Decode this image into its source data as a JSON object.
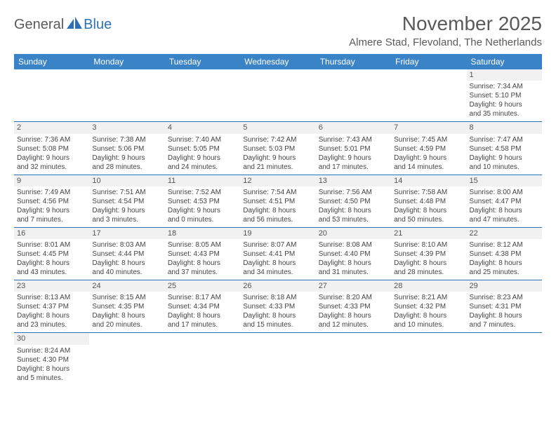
{
  "logo": {
    "part1": "General",
    "part2": "Blue"
  },
  "title": "November 2025",
  "location": "Almere Stad, Flevoland, The Netherlands",
  "colors": {
    "header_bg": "#3b83c7",
    "header_text": "#ffffff",
    "border": "#2d6fb8",
    "daynum_bg": "#f1f1f1",
    "text": "#444444",
    "title_text": "#5a5a5a"
  },
  "typography": {
    "title_fontsize": 28,
    "location_fontsize": 15,
    "header_fontsize": 12,
    "cell_fontsize": 10
  },
  "dayHeaders": [
    "Sunday",
    "Monday",
    "Tuesday",
    "Wednesday",
    "Thursday",
    "Friday",
    "Saturday"
  ],
  "weeks": [
    [
      {
        "n": "",
        "sr": "",
        "ss": "",
        "d1": "",
        "d2": ""
      },
      {
        "n": "",
        "sr": "",
        "ss": "",
        "d1": "",
        "d2": ""
      },
      {
        "n": "",
        "sr": "",
        "ss": "",
        "d1": "",
        "d2": ""
      },
      {
        "n": "",
        "sr": "",
        "ss": "",
        "d1": "",
        "d2": ""
      },
      {
        "n": "",
        "sr": "",
        "ss": "",
        "d1": "",
        "d2": ""
      },
      {
        "n": "",
        "sr": "",
        "ss": "",
        "d1": "",
        "d2": ""
      },
      {
        "n": "1",
        "sr": "Sunrise: 7:34 AM",
        "ss": "Sunset: 5:10 PM",
        "d1": "Daylight: 9 hours",
        "d2": "and 35 minutes."
      }
    ],
    [
      {
        "n": "2",
        "sr": "Sunrise: 7:36 AM",
        "ss": "Sunset: 5:08 PM",
        "d1": "Daylight: 9 hours",
        "d2": "and 32 minutes."
      },
      {
        "n": "3",
        "sr": "Sunrise: 7:38 AM",
        "ss": "Sunset: 5:06 PM",
        "d1": "Daylight: 9 hours",
        "d2": "and 28 minutes."
      },
      {
        "n": "4",
        "sr": "Sunrise: 7:40 AM",
        "ss": "Sunset: 5:05 PM",
        "d1": "Daylight: 9 hours",
        "d2": "and 24 minutes."
      },
      {
        "n": "5",
        "sr": "Sunrise: 7:42 AM",
        "ss": "Sunset: 5:03 PM",
        "d1": "Daylight: 9 hours",
        "d2": "and 21 minutes."
      },
      {
        "n": "6",
        "sr": "Sunrise: 7:43 AM",
        "ss": "Sunset: 5:01 PM",
        "d1": "Daylight: 9 hours",
        "d2": "and 17 minutes."
      },
      {
        "n": "7",
        "sr": "Sunrise: 7:45 AM",
        "ss": "Sunset: 4:59 PM",
        "d1": "Daylight: 9 hours",
        "d2": "and 14 minutes."
      },
      {
        "n": "8",
        "sr": "Sunrise: 7:47 AM",
        "ss": "Sunset: 4:58 PM",
        "d1": "Daylight: 9 hours",
        "d2": "and 10 minutes."
      }
    ],
    [
      {
        "n": "9",
        "sr": "Sunrise: 7:49 AM",
        "ss": "Sunset: 4:56 PM",
        "d1": "Daylight: 9 hours",
        "d2": "and 7 minutes."
      },
      {
        "n": "10",
        "sr": "Sunrise: 7:51 AM",
        "ss": "Sunset: 4:54 PM",
        "d1": "Daylight: 9 hours",
        "d2": "and 3 minutes."
      },
      {
        "n": "11",
        "sr": "Sunrise: 7:52 AM",
        "ss": "Sunset: 4:53 PM",
        "d1": "Daylight: 9 hours",
        "d2": "and 0 minutes."
      },
      {
        "n": "12",
        "sr": "Sunrise: 7:54 AM",
        "ss": "Sunset: 4:51 PM",
        "d1": "Daylight: 8 hours",
        "d2": "and 56 minutes."
      },
      {
        "n": "13",
        "sr": "Sunrise: 7:56 AM",
        "ss": "Sunset: 4:50 PM",
        "d1": "Daylight: 8 hours",
        "d2": "and 53 minutes."
      },
      {
        "n": "14",
        "sr": "Sunrise: 7:58 AM",
        "ss": "Sunset: 4:48 PM",
        "d1": "Daylight: 8 hours",
        "d2": "and 50 minutes."
      },
      {
        "n": "15",
        "sr": "Sunrise: 8:00 AM",
        "ss": "Sunset: 4:47 PM",
        "d1": "Daylight: 8 hours",
        "d2": "and 47 minutes."
      }
    ],
    [
      {
        "n": "16",
        "sr": "Sunrise: 8:01 AM",
        "ss": "Sunset: 4:45 PM",
        "d1": "Daylight: 8 hours",
        "d2": "and 43 minutes."
      },
      {
        "n": "17",
        "sr": "Sunrise: 8:03 AM",
        "ss": "Sunset: 4:44 PM",
        "d1": "Daylight: 8 hours",
        "d2": "and 40 minutes."
      },
      {
        "n": "18",
        "sr": "Sunrise: 8:05 AM",
        "ss": "Sunset: 4:43 PM",
        "d1": "Daylight: 8 hours",
        "d2": "and 37 minutes."
      },
      {
        "n": "19",
        "sr": "Sunrise: 8:07 AM",
        "ss": "Sunset: 4:41 PM",
        "d1": "Daylight: 8 hours",
        "d2": "and 34 minutes."
      },
      {
        "n": "20",
        "sr": "Sunrise: 8:08 AM",
        "ss": "Sunset: 4:40 PM",
        "d1": "Daylight: 8 hours",
        "d2": "and 31 minutes."
      },
      {
        "n": "21",
        "sr": "Sunrise: 8:10 AM",
        "ss": "Sunset: 4:39 PM",
        "d1": "Daylight: 8 hours",
        "d2": "and 28 minutes."
      },
      {
        "n": "22",
        "sr": "Sunrise: 8:12 AM",
        "ss": "Sunset: 4:38 PM",
        "d1": "Daylight: 8 hours",
        "d2": "and 25 minutes."
      }
    ],
    [
      {
        "n": "23",
        "sr": "Sunrise: 8:13 AM",
        "ss": "Sunset: 4:37 PM",
        "d1": "Daylight: 8 hours",
        "d2": "and 23 minutes."
      },
      {
        "n": "24",
        "sr": "Sunrise: 8:15 AM",
        "ss": "Sunset: 4:35 PM",
        "d1": "Daylight: 8 hours",
        "d2": "and 20 minutes."
      },
      {
        "n": "25",
        "sr": "Sunrise: 8:17 AM",
        "ss": "Sunset: 4:34 PM",
        "d1": "Daylight: 8 hours",
        "d2": "and 17 minutes."
      },
      {
        "n": "26",
        "sr": "Sunrise: 8:18 AM",
        "ss": "Sunset: 4:33 PM",
        "d1": "Daylight: 8 hours",
        "d2": "and 15 minutes."
      },
      {
        "n": "27",
        "sr": "Sunrise: 8:20 AM",
        "ss": "Sunset: 4:33 PM",
        "d1": "Daylight: 8 hours",
        "d2": "and 12 minutes."
      },
      {
        "n": "28",
        "sr": "Sunrise: 8:21 AM",
        "ss": "Sunset: 4:32 PM",
        "d1": "Daylight: 8 hours",
        "d2": "and 10 minutes."
      },
      {
        "n": "29",
        "sr": "Sunrise: 8:23 AM",
        "ss": "Sunset: 4:31 PM",
        "d1": "Daylight: 8 hours",
        "d2": "and 7 minutes."
      }
    ],
    [
      {
        "n": "30",
        "sr": "Sunrise: 8:24 AM",
        "ss": "Sunset: 4:30 PM",
        "d1": "Daylight: 8 hours",
        "d2": "and 5 minutes."
      },
      {
        "n": "",
        "sr": "",
        "ss": "",
        "d1": "",
        "d2": ""
      },
      {
        "n": "",
        "sr": "",
        "ss": "",
        "d1": "",
        "d2": ""
      },
      {
        "n": "",
        "sr": "",
        "ss": "",
        "d1": "",
        "d2": ""
      },
      {
        "n": "",
        "sr": "",
        "ss": "",
        "d1": "",
        "d2": ""
      },
      {
        "n": "",
        "sr": "",
        "ss": "",
        "d1": "",
        "d2": ""
      },
      {
        "n": "",
        "sr": "",
        "ss": "",
        "d1": "",
        "d2": ""
      }
    ]
  ]
}
